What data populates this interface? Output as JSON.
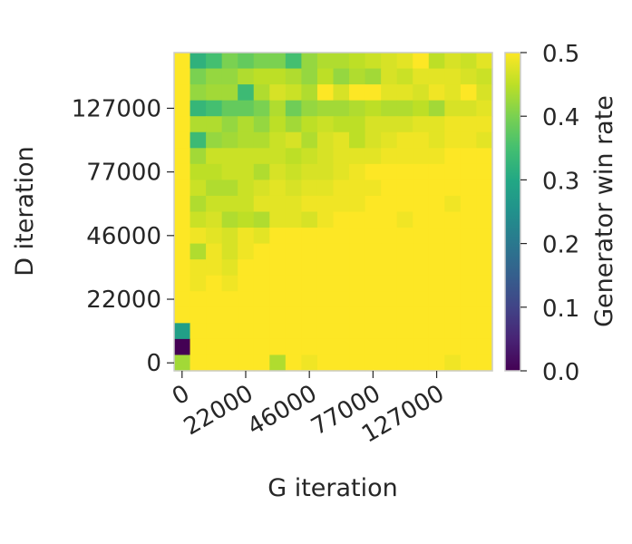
{
  "chart_data": {
    "type": "heatmap",
    "title": "",
    "xlabel": "G iteration",
    "ylabel": "D iteration",
    "colorbar_label": "Generator win rate",
    "colormap": "viridis",
    "vmin": 0.0,
    "vmax": 0.5,
    "x_ticks": [
      {
        "index": 0,
        "label": "0"
      },
      {
        "index": 4,
        "label": "22000"
      },
      {
        "index": 8,
        "label": "46000"
      },
      {
        "index": 12,
        "label": "77000"
      },
      {
        "index": 16,
        "label": "127000"
      }
    ],
    "y_ticks": [
      {
        "index": 0,
        "label": "0"
      },
      {
        "index": 4,
        "label": "22000"
      },
      {
        "index": 8,
        "label": "46000"
      },
      {
        "index": 12,
        "label": "77000"
      },
      {
        "index": 16,
        "label": "127000"
      }
    ],
    "colorbar_ticks": [
      "0.0",
      "0.1",
      "0.2",
      "0.3",
      "0.4",
      "0.5"
    ],
    "rows_top_to_bottom": [
      [
        0.5,
        0.32,
        0.35,
        0.4,
        0.38,
        0.4,
        0.4,
        0.35,
        0.42,
        0.44,
        0.44,
        0.45,
        0.46,
        0.47,
        0.48,
        0.5,
        0.45,
        0.47,
        0.46,
        0.48
      ],
      [
        0.5,
        0.4,
        0.42,
        0.42,
        0.44,
        0.45,
        0.45,
        0.44,
        0.42,
        0.45,
        0.42,
        0.44,
        0.43,
        0.47,
        0.46,
        0.48,
        0.48,
        0.48,
        0.47,
        0.46
      ],
      [
        0.5,
        0.42,
        0.43,
        0.43,
        0.34,
        0.44,
        0.47,
        0.46,
        0.44,
        0.5,
        0.47,
        0.5,
        0.5,
        0.48,
        0.48,
        0.47,
        0.49,
        0.48,
        0.5,
        0.47
      ],
      [
        0.5,
        0.33,
        0.35,
        0.38,
        0.38,
        0.4,
        0.44,
        0.39,
        0.42,
        0.43,
        0.43,
        0.44,
        0.45,
        0.44,
        0.44,
        0.45,
        0.43,
        0.47,
        0.47,
        0.48
      ],
      [
        0.5,
        0.44,
        0.44,
        0.42,
        0.44,
        0.42,
        0.45,
        0.43,
        0.45,
        0.46,
        0.45,
        0.45,
        0.47,
        0.47,
        0.47,
        0.48,
        0.48,
        0.49,
        0.49,
        0.49
      ],
      [
        0.5,
        0.34,
        0.42,
        0.43,
        0.44,
        0.44,
        0.46,
        0.47,
        0.44,
        0.47,
        0.48,
        0.45,
        0.47,
        0.48,
        0.49,
        0.49,
        0.48,
        0.49,
        0.49,
        0.48
      ],
      [
        0.5,
        0.43,
        0.46,
        0.46,
        0.46,
        0.46,
        0.46,
        0.45,
        0.46,
        0.47,
        0.48,
        0.48,
        0.48,
        0.49,
        0.49,
        0.49,
        0.49,
        0.5,
        0.5,
        0.5
      ],
      [
        0.5,
        0.45,
        0.45,
        0.46,
        0.46,
        0.44,
        0.47,
        0.46,
        0.47,
        0.47,
        0.48,
        0.49,
        0.5,
        0.5,
        0.5,
        0.5,
        0.5,
        0.5,
        0.5,
        0.5
      ],
      [
        0.5,
        0.46,
        0.44,
        0.44,
        0.46,
        0.47,
        0.48,
        0.47,
        0.48,
        0.48,
        0.49,
        0.49,
        0.49,
        0.5,
        0.5,
        0.5,
        0.5,
        0.5,
        0.5,
        0.5
      ],
      [
        0.5,
        0.44,
        0.46,
        0.46,
        0.46,
        0.48,
        0.48,
        0.48,
        0.49,
        0.49,
        0.49,
        0.49,
        0.5,
        0.5,
        0.5,
        0.5,
        0.5,
        0.49,
        0.5,
        0.5
      ],
      [
        0.5,
        0.46,
        0.47,
        0.44,
        0.45,
        0.44,
        0.48,
        0.48,
        0.47,
        0.49,
        0.5,
        0.5,
        0.5,
        0.5,
        0.49,
        0.5,
        0.5,
        0.5,
        0.5,
        0.5
      ],
      [
        0.5,
        0.49,
        0.48,
        0.47,
        0.49,
        0.48,
        0.5,
        0.5,
        0.5,
        0.5,
        0.5,
        0.5,
        0.5,
        0.5,
        0.5,
        0.5,
        0.5,
        0.5,
        0.5,
        0.5
      ],
      [
        0.5,
        0.44,
        0.49,
        0.47,
        0.49,
        0.5,
        0.5,
        0.5,
        0.5,
        0.5,
        0.5,
        0.5,
        0.5,
        0.5,
        0.5,
        0.5,
        0.5,
        0.5,
        0.5,
        0.5
      ],
      [
        0.5,
        0.49,
        0.49,
        0.48,
        0.5,
        0.5,
        0.5,
        0.5,
        0.5,
        0.5,
        0.5,
        0.5,
        0.5,
        0.5,
        0.5,
        0.5,
        0.5,
        0.5,
        0.5,
        0.5
      ],
      [
        0.5,
        0.49,
        0.5,
        0.49,
        0.5,
        0.5,
        0.5,
        0.5,
        0.5,
        0.5,
        0.5,
        0.5,
        0.5,
        0.5,
        0.5,
        0.5,
        0.5,
        0.5,
        0.5,
        0.5
      ],
      [
        0.5,
        0.5,
        0.5,
        0.5,
        0.5,
        0.5,
        0.5,
        0.5,
        0.5,
        0.5,
        0.5,
        0.5,
        0.5,
        0.5,
        0.5,
        0.5,
        0.5,
        0.5,
        0.5,
        0.5
      ],
      [
        0.5,
        0.5,
        0.5,
        0.5,
        0.5,
        0.5,
        0.5,
        0.5,
        0.5,
        0.5,
        0.5,
        0.5,
        0.5,
        0.5,
        0.5,
        0.5,
        0.5,
        0.5,
        0.5,
        0.5
      ],
      [
        0.28,
        0.5,
        0.5,
        0.5,
        0.5,
        0.5,
        0.5,
        0.5,
        0.5,
        0.5,
        0.5,
        0.5,
        0.5,
        0.5,
        0.5,
        0.5,
        0.5,
        0.5,
        0.5,
        0.5
      ],
      [
        0.0,
        0.5,
        0.5,
        0.5,
        0.5,
        0.5,
        0.5,
        0.5,
        0.5,
        0.5,
        0.5,
        0.5,
        0.5,
        0.5,
        0.5,
        0.5,
        0.5,
        0.5,
        0.5,
        0.5
      ],
      [
        0.43,
        0.5,
        0.5,
        0.5,
        0.5,
        0.5,
        0.44,
        0.5,
        0.49,
        0.5,
        0.5,
        0.5,
        0.5,
        0.5,
        0.5,
        0.5,
        0.5,
        0.49,
        0.5,
        0.5
      ]
    ]
  }
}
